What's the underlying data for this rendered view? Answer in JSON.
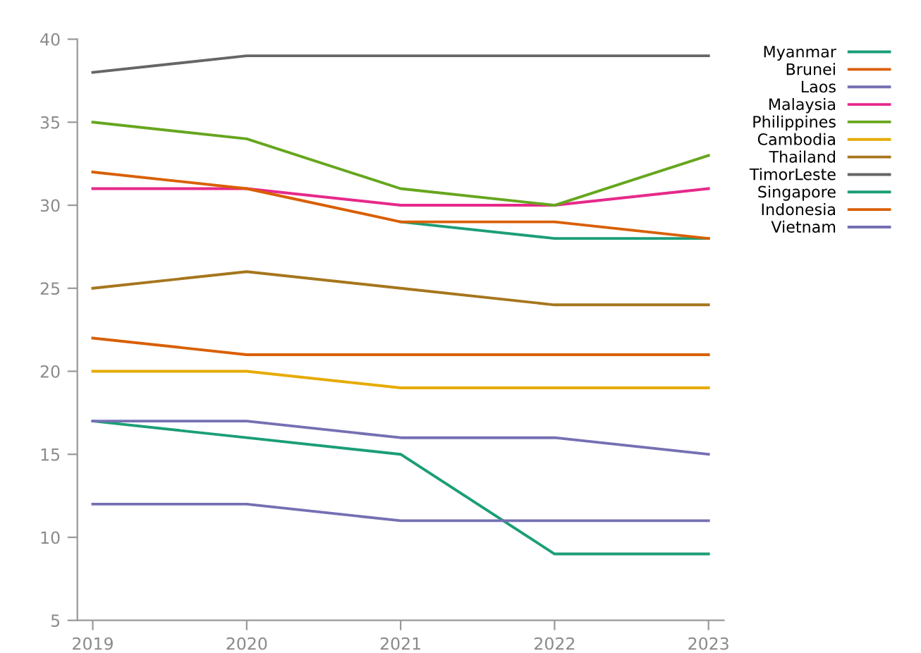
{
  "chart_data": {
    "type": "line",
    "x": [
      2019,
      2020,
      2021,
      2022,
      2023
    ],
    "xlim": [
      2018.9,
      2023.1
    ],
    "xticks": [
      2019,
      2020,
      2021,
      2022,
      2023
    ],
    "ylim": [
      5,
      40
    ],
    "yticks": [
      5,
      10,
      15,
      20,
      25,
      30,
      35,
      40
    ],
    "grid": false,
    "legend": "top right",
    "marker": "none",
    "line_style": "solid",
    "series": [
      {
        "name": "Myanmar",
        "color": "#1b9e77",
        "values": [
          17,
          16,
          15,
          9,
          9
        ]
      },
      {
        "name": "Brunei",
        "color": "#d95f02",
        "values": [
          22,
          21,
          21,
          21,
          21
        ]
      },
      {
        "name": "Laos",
        "color": "#7570b3",
        "values": [
          12,
          12,
          11,
          11,
          11
        ]
      },
      {
        "name": "Malaysia",
        "color": "#e7298a",
        "values": [
          31,
          31,
          30,
          30,
          31
        ]
      },
      {
        "name": "Philippines",
        "color": "#66a61e",
        "values": [
          35,
          34,
          31,
          30,
          33
        ]
      },
      {
        "name": "Cambodia",
        "color": "#e6ab02",
        "values": [
          20,
          20,
          19,
          19,
          19
        ]
      },
      {
        "name": "Thailand",
        "color": "#a6761d",
        "values": [
          25,
          26,
          25,
          24,
          24
        ]
      },
      {
        "name": "TimorLeste",
        "color": "#666666",
        "values": [
          38,
          39,
          39,
          39,
          39
        ]
      },
      {
        "name": "Singapore",
        "color": "#1b9e77",
        "values": [
          null,
          null,
          29,
          28,
          28
        ]
      },
      {
        "name": "Indonesia",
        "color": "#d95f02",
        "values": [
          32,
          31,
          29,
          29,
          28
        ]
      },
      {
        "name": "Vietnam",
        "color": "#7570b3",
        "values": [
          17,
          17,
          16,
          16,
          15
        ]
      }
    ]
  }
}
